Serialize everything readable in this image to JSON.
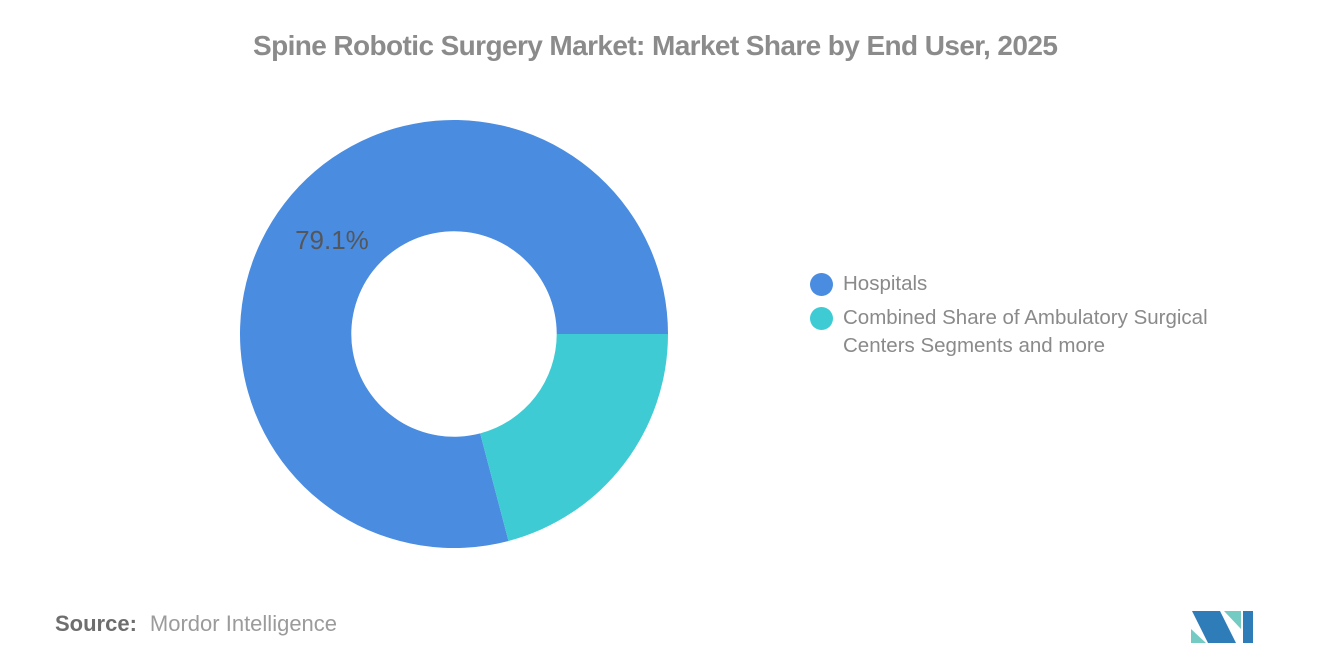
{
  "header": {
    "title": "Spine Robotic Surgery Market: Market Share by End User, 2025"
  },
  "chart_data": {
    "type": "pie",
    "subtype": "donut",
    "title": "Spine Robotic Surgery Market: Market Share by End User, 2025",
    "inner_radius_ratio": 0.48,
    "start_angle_deg": 0,
    "direction": "counterclockwise",
    "total": 100,
    "series": [
      {
        "name": "Hospitals",
        "value": 79.1,
        "color": "#4A8CE0",
        "slice_label": "79.1%"
      },
      {
        "name": "Combined Share of Ambulatory Surgical Centers Segments and more",
        "value": 20.9,
        "color": "#3ECBD4",
        "slice_label": ""
      }
    ],
    "legend_position": "right",
    "slice_label_color": "#55565A",
    "slice_label_font_size": 26
  },
  "footer": {
    "source_label": "Source:",
    "source_value": "Mordor Intelligence",
    "logo": {
      "name": "mordor-intelligence-logo",
      "blue": "#2E7CB8",
      "teal": "#74CBC4"
    }
  }
}
